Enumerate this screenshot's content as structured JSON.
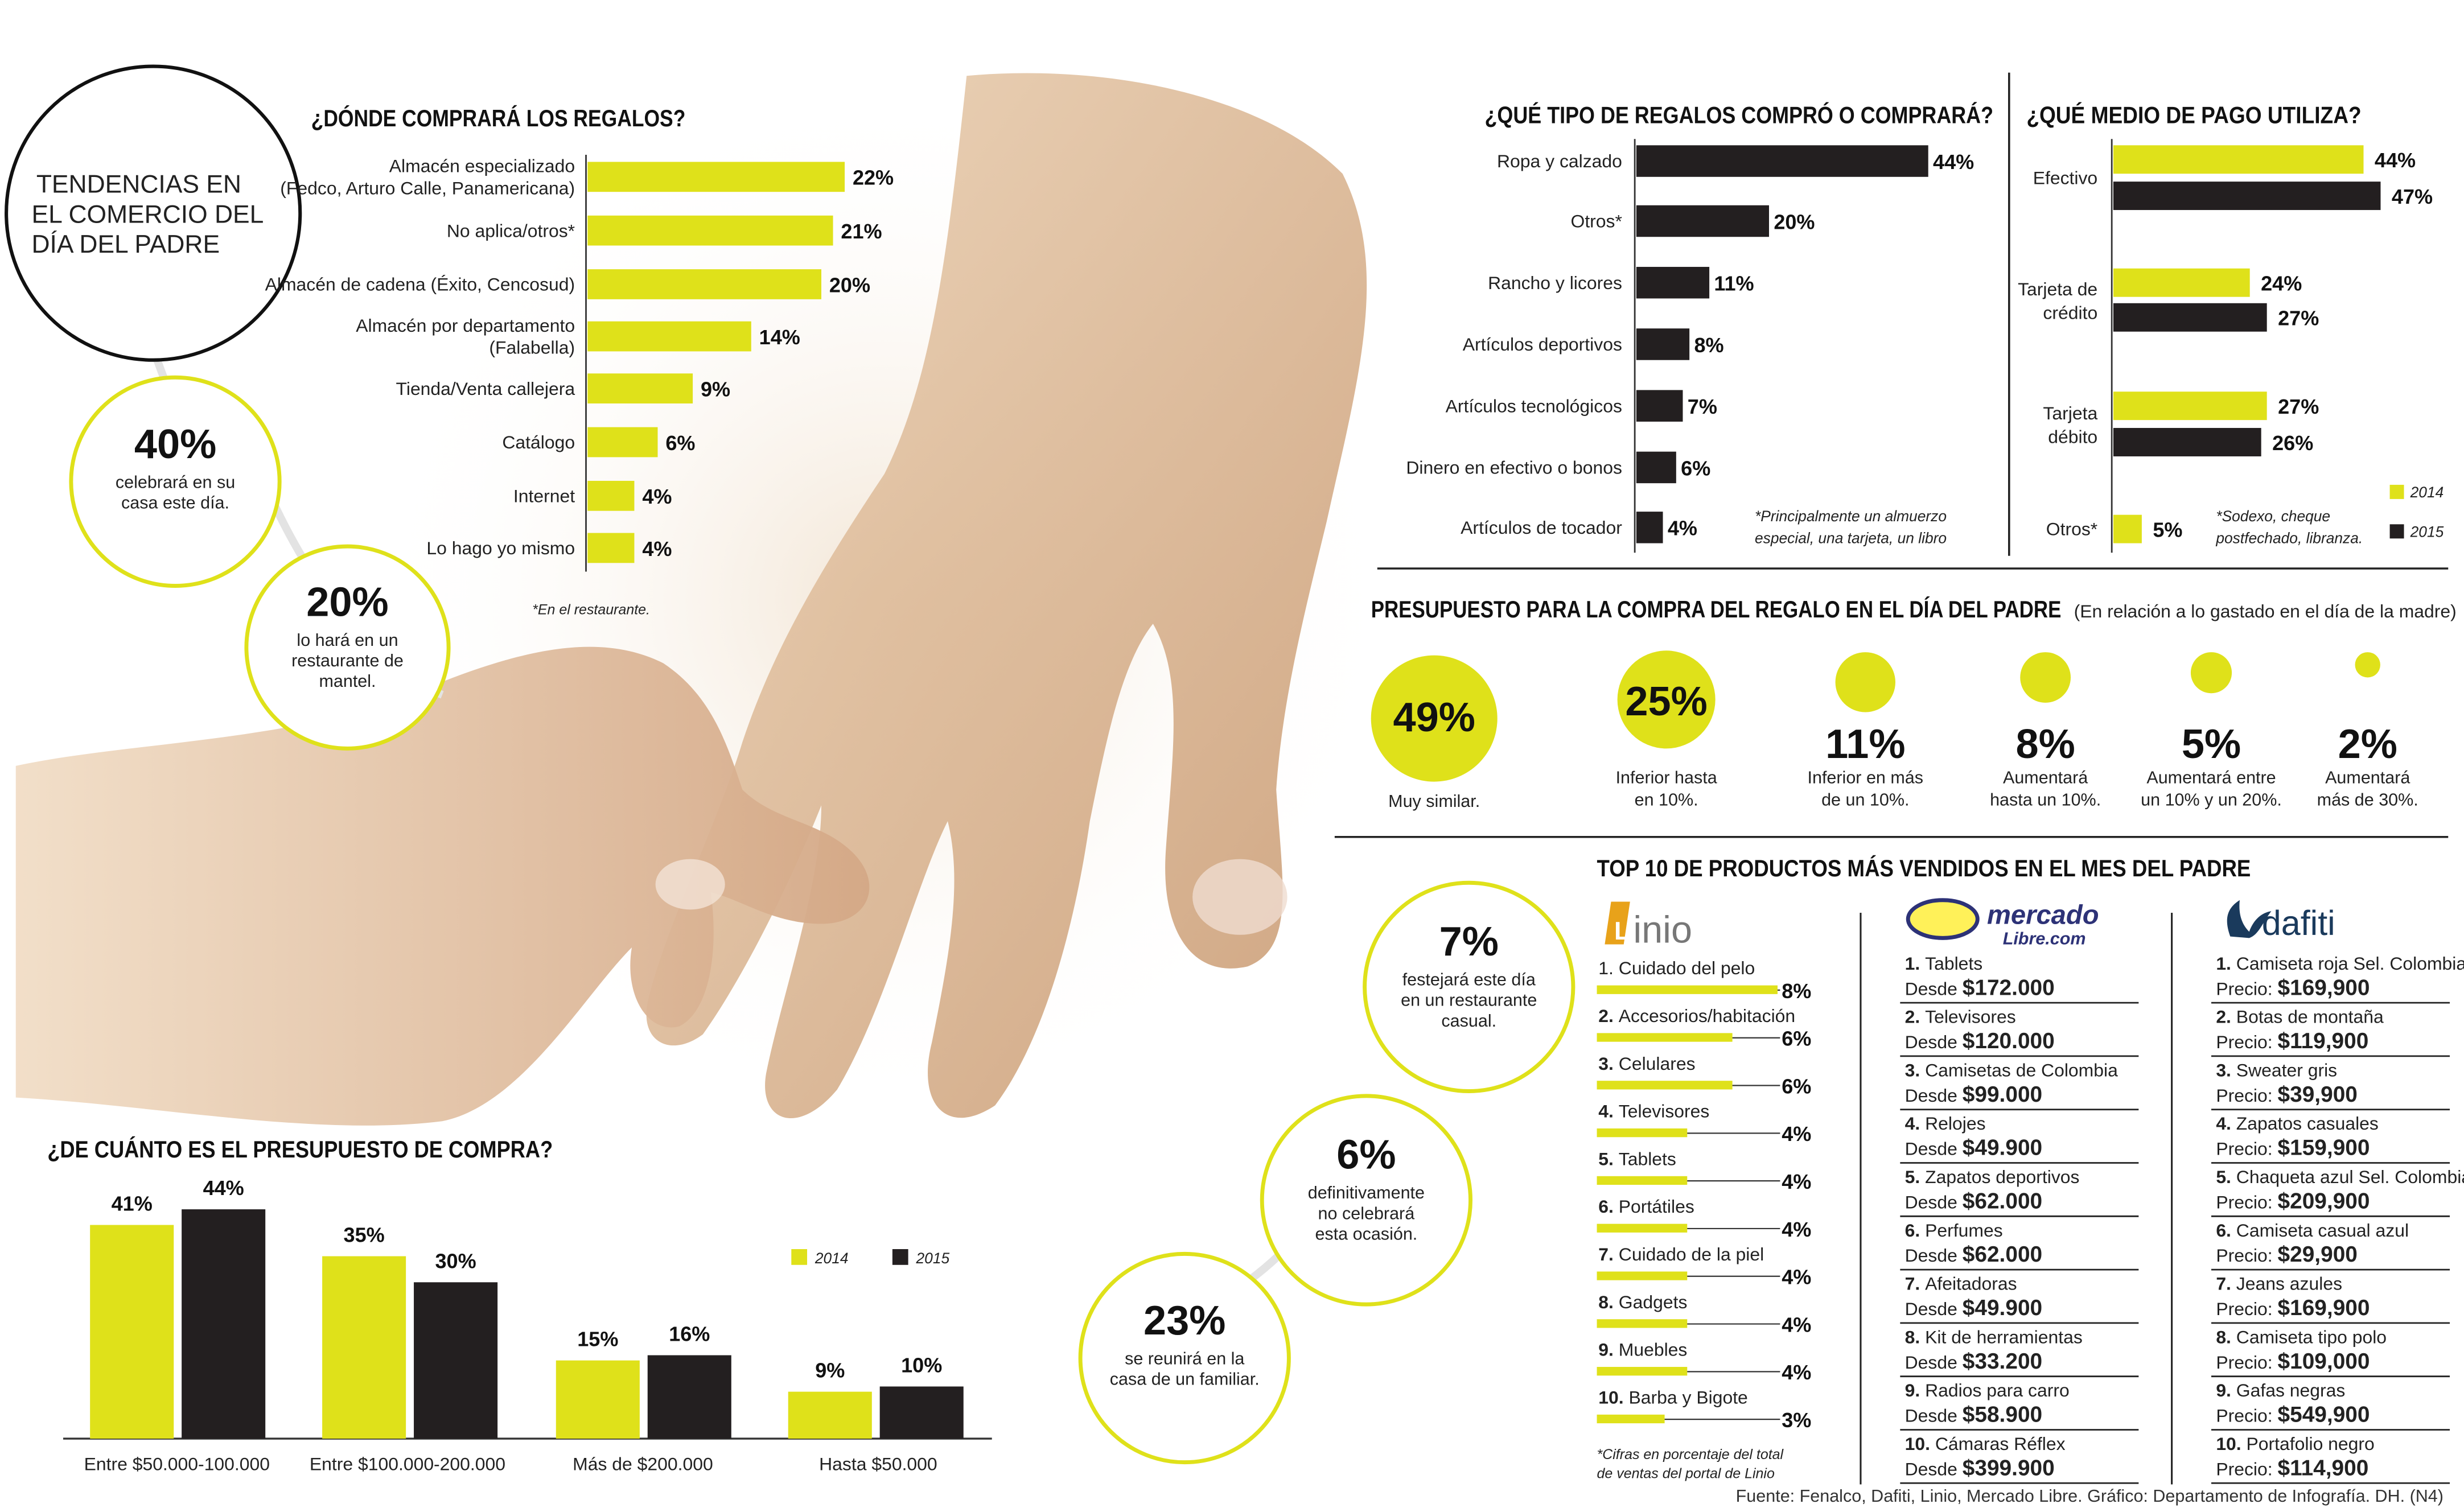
{
  "colors": {
    "yellow": "#dfe11a",
    "black": "#231f20",
    "hand_skin": "#ddb894",
    "hand_skin_light": "#ecd3b6",
    "pale": "#f7f4ee"
  },
  "main_title": [
    "TENDENCIAS EN",
    "EL COMERCIO DEL",
    "DÍA DEL PADRE"
  ],
  "bubbles": [
    {
      "value": "40%",
      "text": [
        "celebrará en su",
        "casa este día."
      ]
    },
    {
      "value": "20%",
      "text": [
        "lo hará en un",
        "restaurante de",
        "mantel."
      ]
    },
    {
      "value": "7%",
      "text": [
        "festejará este día",
        "en un restaurante",
        "casual."
      ]
    },
    {
      "value": "6%",
      "text": [
        "definitivamente",
        "no celebrará",
        "esta ocasión."
      ]
    },
    {
      "value": "23%",
      "text": [
        "se reunirá en la",
        "casa de un familiar."
      ]
    }
  ],
  "budget_intro": "(En relación a lo gastado en el día de la madre)",
  "top10_title": "TOP 10 DE PRODUCTOS MÁS VENDIDOS EN EL MES DEL PADRE",
  "logos": {
    "linio": "inio",
    "mercado_top": "mercado",
    "mercado_bottom": "Libre.com",
    "dafiti": "dafiti"
  },
  "linio_note": [
    "*Cifras en porcentaje del total",
    "de ventas del portal de Linio"
  ],
  "mercadolibre": [
    {
      "rank": "1.",
      "name": "Tablets",
      "prefix": "Desde",
      "price": "$172.000"
    },
    {
      "rank": "2.",
      "name": "Televisores",
      "prefix": "Desde",
      "price": "$120.000"
    },
    {
      "rank": "3.",
      "name": "Camisetas de Colombia",
      "prefix": "Desde",
      "price": "$99.000"
    },
    {
      "rank": "4.",
      "name": "Relojes",
      "prefix": "Desde",
      "price": "$49.900"
    },
    {
      "rank": "5.",
      "name": "Zapatos deportivos",
      "prefix": "Desde",
      "price": "$62.000"
    },
    {
      "rank": "6.",
      "name": "Perfumes",
      "prefix": "Desde",
      "price": "$62.000"
    },
    {
      "rank": "7.",
      "name": "Afeitadoras",
      "prefix": "Desde",
      "price": "$49.900"
    },
    {
      "rank": "8.",
      "name": "Kit de herramientas",
      "prefix": "Desde",
      "price": "$33.200"
    },
    {
      "rank": "9.",
      "name": "Radios para carro",
      "prefix": "Desde",
      "price": "$58.900"
    },
    {
      "rank": "10.",
      "name": "Cámaras Réflex",
      "prefix": "Desde",
      "price": "$399.900"
    }
  ],
  "dafiti": [
    {
      "rank": "1.",
      "name": "Camiseta roja Sel. Colombia",
      "prefix": "Precio:",
      "price": "$169,900"
    },
    {
      "rank": "2.",
      "name": "Botas de montaña",
      "prefix": "Precio:",
      "price": "$119,900"
    },
    {
      "rank": "3.",
      "name": "Sweater gris",
      "prefix": "Precio:",
      "price": "$39,900"
    },
    {
      "rank": "4.",
      "name": "Zapatos casuales",
      "prefix": "Precio:",
      "price": "$159,900"
    },
    {
      "rank": "5.",
      "name": "Chaqueta azul Sel. Colombia",
      "prefix": "Precio:",
      "price": "$209,900"
    },
    {
      "rank": "6.",
      "name": "Camiseta casual azul",
      "prefix": "Precio:",
      "price": "$29,900"
    },
    {
      "rank": "7.",
      "name": "Jeans azules",
      "prefix": "Precio:",
      "price": "$169,900"
    },
    {
      "rank": "8.",
      "name": "Camiseta tipo polo",
      "prefix": "Precio:",
      "price": "$109,000"
    },
    {
      "rank": "9.",
      "name": "Gafas negras",
      "prefix": "Precio:",
      "price": "$549,900"
    },
    {
      "rank": "10.",
      "name": "Portafolio negro",
      "prefix": "Precio:",
      "price": "$114,900"
    }
  ],
  "credit": "Fuente: Fenalco, Dafiti, Linio, Mercado Libre. Gráfico: Departamento de Infografía. DH. (N4)",
  "chart_data": [
    {
      "id": "donde",
      "type": "bar",
      "orientation": "horizontal",
      "title": "¿DÓNDE COMPRARÁ LOS REGALOS?",
      "categories": [
        [
          "Almacén especializado",
          "(Fedco, Arturo Calle, Panamericana)"
        ],
        [
          "No aplica/otros*"
        ],
        [
          "Almacén de cadena (Éxito, Cencosud)"
        ],
        [
          "Almacén por departamento",
          "(Falabella)"
        ],
        [
          "Tienda/Venta callejera"
        ],
        [
          "Catálogo"
        ],
        [
          "Internet"
        ],
        [
          "Lo hago yo mismo"
        ]
      ],
      "values": [
        22,
        21,
        20,
        14,
        9,
        6,
        4,
        4
      ],
      "labels": [
        "22%",
        "21%",
        "20%",
        "14%",
        "9%",
        "6%",
        "4%",
        "4%"
      ],
      "color": "yellow",
      "note": "*En el restaurante."
    },
    {
      "id": "tipo",
      "type": "bar",
      "orientation": "horizontal",
      "title": "¿QUÉ TIPO DE REGALOS COMPRÓ O COMPRARÁ?",
      "categories": [
        "Ropa y calzado",
        "Otros*",
        "Rancho y licores",
        "Artículos deportivos",
        "Artículos tecnológicos",
        "Dinero en efectivo o bonos",
        "Artículos de tocador"
      ],
      "values": [
        44,
        20,
        11,
        8,
        7,
        6,
        4
      ],
      "labels": [
        "44%",
        "20%",
        "11%",
        "8%",
        "7%",
        "6%",
        "4%"
      ],
      "color": "black",
      "note": [
        "*Principalmente un almuerzo",
        "especial, una tarjeta, un libro"
      ]
    },
    {
      "id": "pago",
      "type": "bar",
      "orientation": "horizontal",
      "title": "¿QUÉ MEDIO DE PAGO UTILIZA?",
      "categories": [
        [
          "Efectivo"
        ],
        [
          "Tarjeta de",
          "crédito"
        ],
        [
          "Tarjeta",
          "débito"
        ],
        [
          "Otros*"
        ]
      ],
      "series": [
        {
          "name": "2014",
          "values": [
            44,
            24,
            27,
            5
          ],
          "labels": [
            "44%",
            "24%",
            "27%",
            "5%"
          ]
        },
        {
          "name": "2015",
          "values": [
            47,
            27,
            26,
            null
          ],
          "labels": [
            "47%",
            "27%",
            "26%",
            ""
          ]
        }
      ],
      "note": [
        "*Sodexo, cheque",
        "postfechado, libranza."
      ]
    },
    {
      "id": "presupuesto_regalo",
      "type": "bubble",
      "title": "PRESUPUESTO PARA LA COMPRA DEL REGALO EN EL DÍA DEL PADRE",
      "categories": [
        [
          "Muy similar."
        ],
        [
          "Inferior hasta",
          "en 10%."
        ],
        [
          "Inferior en más",
          "de un 10%."
        ],
        [
          "Aumentará",
          "hasta un 10%."
        ],
        [
          "Aumentará entre",
          "un 10% y un 20%."
        ],
        [
          "Aumentará",
          "más de 30%."
        ]
      ],
      "values": [
        49,
        25,
        11,
        8,
        5,
        2
      ],
      "labels": [
        "49%",
        "25%",
        "11%",
        "8%",
        "5%",
        "2%"
      ]
    },
    {
      "id": "presupuesto_compra",
      "type": "bar",
      "orientation": "vertical",
      "title": "¿DE CUÁNTO ES EL PRESUPUESTO DE COMPRA?",
      "categories": [
        "Entre $50.000-100.000",
        "Entre $100.000-200.000",
        "Más de $200.000",
        "Hasta $50.000"
      ],
      "series": [
        {
          "name": "2014",
          "values": [
            41,
            35,
            15,
            9
          ],
          "labels": [
            "41%",
            "35%",
            "15%",
            "9%"
          ]
        },
        {
          "name": "2015",
          "values": [
            44,
            30,
            16,
            10
          ],
          "labels": [
            "44%",
            "30%",
            "16%",
            "10%"
          ]
        }
      ]
    },
    {
      "id": "linio",
      "type": "bar",
      "orientation": "horizontal",
      "title": "Linio",
      "categories": [
        "Cuidado del pelo",
        "Accesorios/habitación",
        "Celulares",
        "Televisores",
        "Tablets",
        "Portátiles",
        "Cuidado de la piel",
        "Gadgets",
        "Muebles",
        "Barba y Bigote"
      ],
      "ranks": [
        "1.",
        "2.",
        "3.",
        "4.",
        "5.",
        "6.",
        "7.",
        "8.",
        "9.",
        "10."
      ],
      "values": [
        8,
        6,
        6,
        4,
        4,
        4,
        4,
        4,
        4,
        3
      ],
      "labels": [
        "8%",
        "6%",
        "6%",
        "4%",
        "4%",
        "4%",
        "4%",
        "4%",
        "4%",
        "3%"
      ]
    }
  ]
}
